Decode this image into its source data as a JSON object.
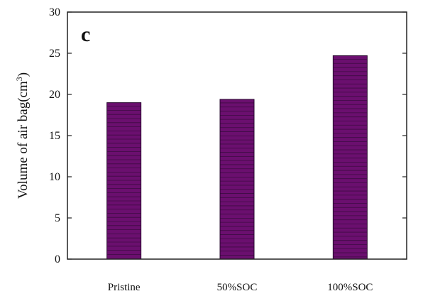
{
  "panel_label": "c",
  "chart_data": {
    "type": "bar",
    "categories": [
      "Pristine",
      "50%SOC",
      "100%SOC"
    ],
    "values": [
      19.0,
      19.4,
      24.7
    ],
    "ylabel": "Volume of air bag(cm3)",
    "ylabel_main": "Volume of air bag(cm",
    "ylabel_sup": "3",
    "ylabel_close": ")",
    "ylim": [
      0,
      30
    ],
    "yticks": [
      0,
      5,
      10,
      15,
      20,
      25,
      30
    ],
    "grid": false,
    "bar_color": "#6b0f6f",
    "bar_stripe_color": "#2a0a30"
  }
}
